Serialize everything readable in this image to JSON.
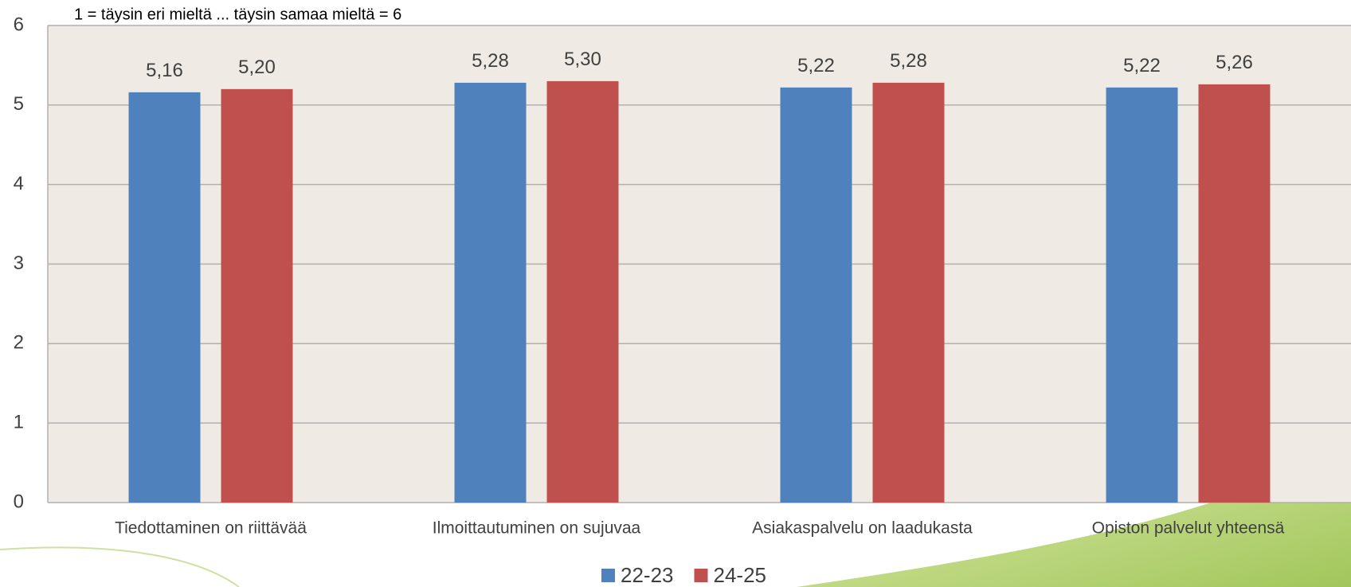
{
  "chart_data": {
    "type": "bar",
    "annotation": "1 = täysin eri mieltä ... täysin samaa mieltä = 6",
    "categories": [
      "Tiedottaminen on riittävää",
      "Ilmoittautuminen on sujuvaa",
      "Asiakaspalvelu on laadukasta",
      "Opiston palvelut yhteensä"
    ],
    "series": [
      {
        "name": "22-23",
        "color": "#4f81bd",
        "values": [
          5.16,
          5.28,
          5.22,
          5.22
        ],
        "value_labels": [
          "5,16",
          "5,28",
          "5,22",
          "5,22"
        ]
      },
      {
        "name": "24-25",
        "color": "#c0504d",
        "values": [
          5.2,
          5.3,
          5.28,
          5.26
        ],
        "value_labels": [
          "5,20",
          "5,30",
          "5,28",
          "5,26"
        ]
      }
    ],
    "ylim": [
      0,
      6
    ],
    "yticks": [
      0,
      1,
      2,
      3,
      4,
      5,
      6
    ],
    "grid": true,
    "legend": "bottom"
  }
}
